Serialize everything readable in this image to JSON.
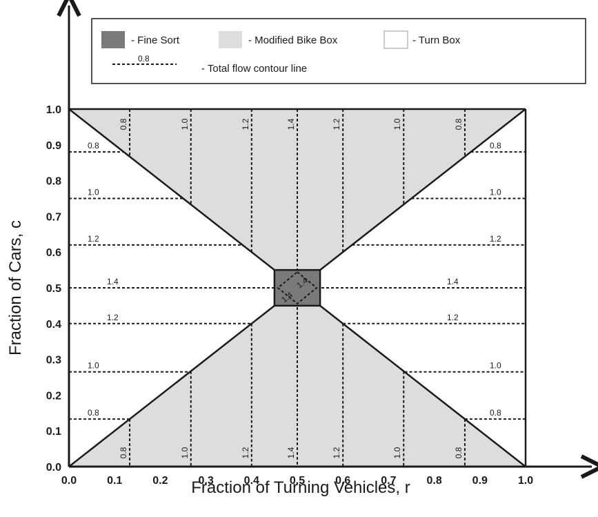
{
  "chart_data": {
    "type": "region-contour",
    "xlabel": "Fraction of Turning Vehicles, r",
    "ylabel": "Fraction of Cars, c",
    "xlim": [
      0,
      1
    ],
    "ylim": [
      0,
      1
    ],
    "x_ticks": [
      "0.0",
      "0.1",
      "0.2",
      "0.3",
      "0.4",
      "0.5",
      "0.6",
      "0.7",
      "0.8",
      "0.9",
      "1.0"
    ],
    "y_ticks": [
      "0.0",
      "0.1",
      "0.2",
      "0.3",
      "0.4",
      "0.5",
      "0.6",
      "0.7",
      "0.8",
      "0.9",
      "1.0"
    ],
    "legend": {
      "fine_sort": "- Fine Sort",
      "modified_bike_box": "- Modified Bike Box",
      "turn_box": "- Turn Box",
      "contour_sample_label": "0.8",
      "contour": "- Total flow contour line"
    },
    "colors": {
      "fine_sort": "#7a7a7a",
      "modified_bike_box": "#dddddd",
      "turn_box": "#ffffff",
      "lines": "#1a1a1a"
    },
    "regions": {
      "modified_bike_box_upper": [
        [
          0,
          1
        ],
        [
          1,
          1
        ],
        [
          0.5,
          0.5
        ]
      ],
      "modified_bike_box_lower": [
        [
          0,
          0
        ],
        [
          1,
          0
        ],
        [
          0.5,
          0.5
        ]
      ],
      "fine_sort": {
        "r": [
          0.45,
          0.55
        ],
        "c": [
          0.45,
          0.55
        ]
      }
    },
    "vertical_contours": [
      {
        "r": 0.133,
        "label": "0.8"
      },
      {
        "r": 0.267,
        "label": "1.0"
      },
      {
        "r": 0.4,
        "label": "1.2"
      },
      {
        "r": 0.5,
        "label": "1.4"
      },
      {
        "r": 0.6,
        "label": "1.2"
      },
      {
        "r": 0.733,
        "label": "1.0"
      },
      {
        "r": 0.867,
        "label": "0.8"
      }
    ],
    "horizontal_contours": [
      {
        "c": 0.88,
        "label": "0.8"
      },
      {
        "c": 0.75,
        "label": "1.0"
      },
      {
        "c": 0.62,
        "label": "1.2"
      },
      {
        "c": 0.5,
        "label": "1.4"
      },
      {
        "c": 0.4,
        "label": "1.2"
      },
      {
        "c": 0.265,
        "label": "1.0"
      },
      {
        "c": 0.133,
        "label": "0.8"
      }
    ],
    "fine_sort_contour_labels": [
      "1.4",
      "1.4"
    ]
  }
}
